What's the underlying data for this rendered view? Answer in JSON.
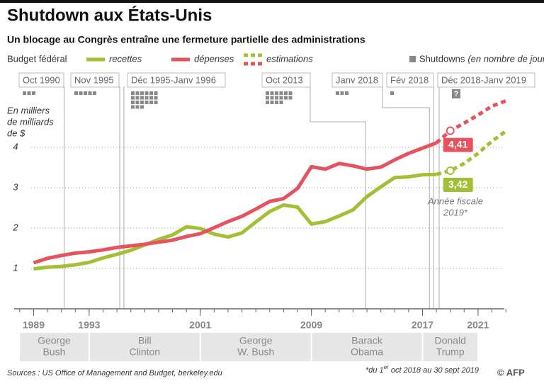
{
  "chart_data": {
    "type": "line",
    "title": "Shutdown aux États-Unis",
    "subtitle": "Un blocage au Congrès entraîne une fermeture partielle des administrations",
    "legend_title": "Budget fédéral",
    "y_label": [
      "En milliers",
      "de milliards",
      "de $"
    ],
    "x": [
      1989,
      1990,
      1991,
      1992,
      1993,
      1994,
      1995,
      1996,
      1997,
      1998,
      1999,
      2000,
      2001,
      2002,
      2003,
      2004,
      2005,
      2006,
      2007,
      2008,
      2009,
      2010,
      2011,
      2012,
      2013,
      2014,
      2015,
      2016,
      2017,
      2018,
      2019,
      2020,
      2021,
      2022,
      2023
    ],
    "series": [
      {
        "name": "recettes",
        "color": "#a3bf35",
        "values": [
          0.99,
          1.03,
          1.05,
          1.09,
          1.15,
          1.26,
          1.35,
          1.45,
          1.58,
          1.72,
          1.83,
          2.03,
          1.99,
          1.85,
          1.78,
          1.88,
          2.15,
          2.41,
          2.57,
          2.52,
          2.1,
          2.16,
          2.3,
          2.45,
          2.78,
          3.02,
          3.25,
          3.27,
          3.32,
          3.33,
          3.42,
          3.6,
          3.85,
          4.15,
          4.4
        ],
        "value_labels": [
          null,
          null,
          null,
          null,
          null,
          null,
          null,
          null,
          null,
          null,
          null,
          null,
          null,
          null,
          null,
          null,
          null,
          null,
          null,
          null,
          null,
          null,
          null,
          null,
          null,
          null,
          null,
          null,
          null,
          null,
          "3,42",
          null,
          null,
          null,
          null
        ]
      },
      {
        "name": "dépenses",
        "color": "#e4535e",
        "values": [
          1.14,
          1.25,
          1.32,
          1.38,
          1.41,
          1.46,
          1.52,
          1.56,
          1.6,
          1.65,
          1.7,
          1.79,
          1.86,
          2.01,
          2.16,
          2.29,
          2.47,
          2.66,
          2.73,
          2.98,
          3.52,
          3.46,
          3.6,
          3.54,
          3.46,
          3.51,
          3.69,
          3.85,
          3.98,
          4.11,
          4.41,
          4.6,
          4.8,
          5.02,
          5.15
        ],
        "value_labels": [
          null,
          null,
          null,
          null,
          null,
          null,
          null,
          null,
          null,
          null,
          null,
          null,
          null,
          null,
          null,
          null,
          null,
          null,
          null,
          null,
          null,
          null,
          null,
          null,
          null,
          null,
          null,
          null,
          null,
          null,
          "4,41",
          null,
          null,
          null,
          null
        ]
      }
    ],
    "estimations": {
      "label": "estimations",
      "from": 2018
    },
    "annotation": [
      "Année fiscale",
      "2019*"
    ],
    "xlim": [
      1987.6,
      2023.3
    ],
    "xticks": [
      1989,
      1993,
      2001,
      2009,
      2017,
      2021
    ],
    "minor_xtick_step": 1,
    "ylim": [
      0,
      5.2
    ],
    "yticks": [
      1,
      2,
      3,
      4
    ],
    "grid": true,
    "shutdowns_legend": {
      "label": "Shutdowns",
      "unit": "(en nombre de jours)",
      "color": "#888888"
    },
    "shutdowns": [
      {
        "label": "Oct 1990",
        "days": 3,
        "x": 1991.2
      },
      {
        "label": "Nov 1995",
        "days": 5,
        "x": 1995.2
      },
      {
        "label": "Déc 1995-Janv 1996",
        "days": 21,
        "x": 1995.5
      },
      {
        "label": "Oct 2013",
        "days": 16,
        "x": 2012.9
      },
      {
        "label": "Janv 2018",
        "days": 3,
        "x": 2017.5
      },
      {
        "label": "Fév 2018",
        "days": 1,
        "x": 2017.8
      },
      {
        "label": "Déc 2018-Janv 2019",
        "days": null,
        "days_label": "?",
        "x": 2018.2
      }
    ],
    "presidents": [
      {
        "lines": [
          "George",
          "Bush"
        ],
        "end": 1993
      },
      {
        "lines": [
          "Bill",
          "Clinton"
        ],
        "end": 2001
      },
      {
        "lines": [
          "George",
          "W. Bush"
        ],
        "end": 2009
      },
      {
        "lines": [
          "Barack",
          "Obama"
        ],
        "end": 2017
      },
      {
        "lines": [
          "Donald",
          "Trump"
        ],
        "end": 2021
      }
    ],
    "source": "Sources : US Office of Management and Budget, berkeley.edu",
    "footnote": [
      "*du 1",
      "er",
      " oct 2018 au 30 sept 2019"
    ],
    "credit": "© AFP"
  }
}
